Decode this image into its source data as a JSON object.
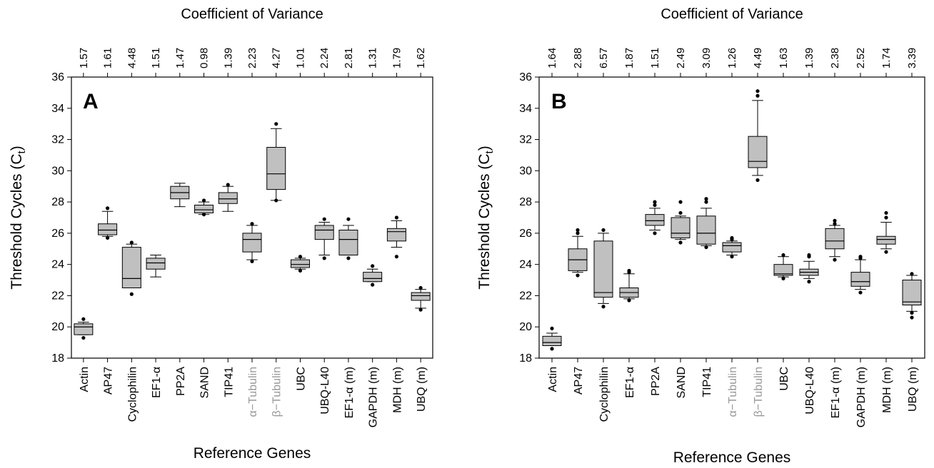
{
  "chart_data": [
    {
      "type": "box",
      "panel_label": "A",
      "top_title": "Coefficient of Variance",
      "xlabel": "Reference Genes",
      "ylabel": "Threshold Cycles (C",
      "ylabel_sub": "t",
      "ylabel_close": ")",
      "ylim": [
        18,
        36
      ],
      "yticks": [
        "18",
        "20",
        "22",
        "24",
        "26",
        "28",
        "30",
        "32",
        "34",
        "36"
      ],
      "categories": [
        {
          "label": "Actin",
          "color": "#000000"
        },
        {
          "label": "AP47",
          "color": "#000000"
        },
        {
          "label": "Cyclophilin",
          "color": "#000000"
        },
        {
          "label": "EF1-α",
          "color": "#000000"
        },
        {
          "label": "PP2A",
          "color": "#000000"
        },
        {
          "label": "SAND",
          "color": "#000000"
        },
        {
          "label": "TIP41",
          "color": "#000000"
        },
        {
          "label": "α−Tubulin",
          "color": "#999999"
        },
        {
          "label": "β−Tubulin",
          "color": "#999999"
        },
        {
          "label": "UBC",
          "color": "#000000"
        },
        {
          "label": "UBQ-L40",
          "color": "#000000"
        },
        {
          "label": "EF1-α (m)",
          "color": "#000000"
        },
        {
          "label": "GAPDH (m)",
          "color": "#000000"
        },
        {
          "label": "MDH (m)",
          "color": "#000000"
        },
        {
          "label": "UBQ (m)",
          "color": "#000000"
        }
      ],
      "cv": [
        "1.57",
        "1.61",
        "4.48",
        "1.51",
        "1.47",
        "0.98",
        "1.39",
        "2.23",
        "4.27",
        "1.01",
        "2.24",
        "2.81",
        "1.31",
        "1.79",
        "1.62"
      ],
      "boxes": [
        {
          "wlo": 19.5,
          "q1": 19.5,
          "med": 20.0,
          "q3": 20.2,
          "whi": 20.3,
          "outliers": [
            19.3,
            20.5
          ]
        },
        {
          "wlo": 25.8,
          "q1": 25.9,
          "med": 26.2,
          "q3": 26.6,
          "whi": 27.4,
          "outliers": [
            25.7,
            27.6
          ]
        },
        {
          "wlo": 22.5,
          "q1": 22.5,
          "med": 23.1,
          "q3": 25.1,
          "whi": 25.3,
          "outliers": [
            22.1,
            25.4
          ]
        },
        {
          "wlo": 23.2,
          "q1": 23.7,
          "med": 24.1,
          "q3": 24.4,
          "whi": 24.6,
          "outliers": []
        },
        {
          "wlo": 27.7,
          "q1": 28.2,
          "med": 28.6,
          "q3": 29.0,
          "whi": 29.2,
          "outliers": []
        },
        {
          "wlo": 27.2,
          "q1": 27.3,
          "med": 27.5,
          "q3": 27.8,
          "whi": 28.0,
          "outliers": [
            27.2,
            28.1
          ]
        },
        {
          "wlo": 27.4,
          "q1": 27.9,
          "med": 28.2,
          "q3": 28.6,
          "whi": 29.0,
          "outliers": [
            29.1
          ]
        },
        {
          "wlo": 24.3,
          "q1": 24.8,
          "med": 25.6,
          "q3": 26.0,
          "whi": 26.5,
          "outliers": [
            24.2,
            26.6
          ]
        },
        {
          "wlo": 28.1,
          "q1": 28.8,
          "med": 29.8,
          "q3": 31.5,
          "whi": 32.7,
          "outliers": [
            28.1,
            33.0
          ]
        },
        {
          "wlo": 23.7,
          "q1": 23.8,
          "med": 24.0,
          "q3": 24.3,
          "whi": 24.4,
          "outliers": [
            23.6,
            24.5
          ]
        },
        {
          "wlo": 24.6,
          "q1": 25.6,
          "med": 26.2,
          "q3": 26.5,
          "whi": 26.7,
          "outliers": [
            24.4,
            26.9
          ]
        },
        {
          "wlo": 24.6,
          "q1": 24.6,
          "med": 25.6,
          "q3": 26.2,
          "whi": 26.5,
          "outliers": [
            24.4,
            26.9
          ]
        },
        {
          "wlo": 22.9,
          "q1": 22.9,
          "med": 23.1,
          "q3": 23.5,
          "whi": 23.7,
          "outliers": [
            22.7,
            23.9
          ]
        },
        {
          "wlo": 25.1,
          "q1": 25.5,
          "med": 26.1,
          "q3": 26.3,
          "whi": 26.8,
          "outliers": [
            24.5,
            27.0
          ]
        },
        {
          "wlo": 21.2,
          "q1": 21.7,
          "med": 22.0,
          "q3": 22.2,
          "whi": 22.4,
          "outliers": [
            21.1,
            22.5
          ]
        }
      ]
    },
    {
      "type": "box",
      "panel_label": "B",
      "top_title": "Coefficient of Variance",
      "xlabel": "Reference Genes",
      "ylabel": "Threshold Cycles (C",
      "ylabel_sub": "t",
      "ylabel_close": ")",
      "ylim": [
        18,
        36
      ],
      "yticks": [
        "18",
        "20",
        "22",
        "24",
        "26",
        "28",
        "30",
        "32",
        "34",
        "36"
      ],
      "categories": [
        {
          "label": "Actin",
          "color": "#000000"
        },
        {
          "label": "AP47",
          "color": "#000000"
        },
        {
          "label": "Cyclophilin",
          "color": "#000000"
        },
        {
          "label": "EF1-α",
          "color": "#000000"
        },
        {
          "label": "PP2A",
          "color": "#000000"
        },
        {
          "label": "SAND",
          "color": "#000000"
        },
        {
          "label": "TIP41",
          "color": "#000000"
        },
        {
          "label": "α−Tubulin",
          "color": "#999999"
        },
        {
          "label": "β−Tubulin",
          "color": "#999999"
        },
        {
          "label": "UBC",
          "color": "#000000"
        },
        {
          "label": "UBQ-L40",
          "color": "#000000"
        },
        {
          "label": "EF1-α (m)",
          "color": "#000000"
        },
        {
          "label": "GAPDH (m)",
          "color": "#000000"
        },
        {
          "label": "MDH (m)",
          "color": "#000000"
        },
        {
          "label": "UBQ (m)",
          "color": "#000000"
        }
      ],
      "cv": [
        "1.64",
        "2.88",
        "6.57",
        "1.87",
        "1.51",
        "2.49",
        "3.09",
        "1.26",
        "4.49",
        "1.63",
        "1.39",
        "2.38",
        "2.52",
        "1.74",
        "3.39"
      ],
      "boxes": [
        {
          "wlo": 18.8,
          "q1": 18.8,
          "med": 19.0,
          "q3": 19.4,
          "whi": 19.6,
          "outliers": [
            18.6,
            19.9
          ]
        },
        {
          "wlo": 23.5,
          "q1": 23.6,
          "med": 24.3,
          "q3": 25.0,
          "whi": 25.8,
          "outliers": [
            23.3,
            26.0,
            26.2
          ]
        },
        {
          "wlo": 21.5,
          "q1": 21.9,
          "med": 22.2,
          "q3": 25.5,
          "whi": 26.0,
          "outliers": [
            21.3,
            26.2
          ]
        },
        {
          "wlo": 21.8,
          "q1": 21.9,
          "med": 22.2,
          "q3": 22.5,
          "whi": 23.4,
          "outliers": [
            21.7,
            23.5,
            23.6
          ]
        },
        {
          "wlo": 26.2,
          "q1": 26.5,
          "med": 26.8,
          "q3": 27.2,
          "whi": 27.6,
          "outliers": [
            26.0,
            27.8,
            28.0
          ]
        },
        {
          "wlo": 25.6,
          "q1": 25.7,
          "med": 26.0,
          "q3": 27.0,
          "whi": 27.1,
          "outliers": [
            25.4,
            27.3,
            28.0
          ]
        },
        {
          "wlo": 25.2,
          "q1": 25.3,
          "med": 26.0,
          "q3": 27.1,
          "whi": 27.6,
          "outliers": [
            25.1,
            28.0,
            28.2
          ]
        },
        {
          "wlo": 24.6,
          "q1": 24.8,
          "med": 25.2,
          "q3": 25.4,
          "whi": 25.5,
          "outliers": [
            24.5,
            25.6,
            25.7
          ]
        },
        {
          "wlo": 29.7,
          "q1": 30.2,
          "med": 30.6,
          "q3": 32.2,
          "whi": 34.5,
          "outliers": [
            29.4,
            34.8,
            35.1
          ]
        },
        {
          "wlo": 23.2,
          "q1": 23.3,
          "med": 23.4,
          "q3": 24.0,
          "whi": 24.5,
          "outliers": [
            23.1,
            24.6
          ]
        },
        {
          "wlo": 23.1,
          "q1": 23.3,
          "med": 23.5,
          "q3": 23.7,
          "whi": 24.2,
          "outliers": [
            22.9,
            24.5,
            24.6
          ]
        },
        {
          "wlo": 24.5,
          "q1": 25.0,
          "med": 25.5,
          "q3": 26.3,
          "whi": 26.5,
          "outliers": [
            24.3,
            26.6,
            26.8
          ]
        },
        {
          "wlo": 22.4,
          "q1": 22.6,
          "med": 22.9,
          "q3": 23.5,
          "whi": 24.3,
          "outliers": [
            22.2,
            24.4,
            24.5
          ]
        },
        {
          "wlo": 25.0,
          "q1": 25.3,
          "med": 25.6,
          "q3": 25.8,
          "whi": 26.7,
          "outliers": [
            24.8,
            27.0,
            27.3
          ]
        },
        {
          "wlo": 21.0,
          "q1": 21.4,
          "med": 21.6,
          "q3": 23.0,
          "whi": 23.3,
          "outliers": [
            20.6,
            20.9,
            23.4
          ]
        }
      ]
    }
  ]
}
